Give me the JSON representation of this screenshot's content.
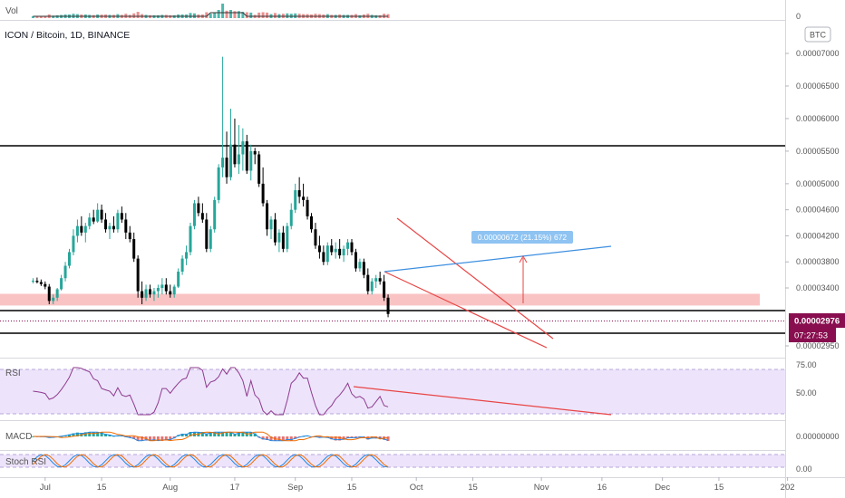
{
  "header": {
    "vol_label": "Vol",
    "symbol_title": "ICON / Bitcoin, 1D, BINANCE",
    "currency_button": "BTC",
    "vol_axis_zero": "0"
  },
  "panes": {
    "rsi_label": "RSI",
    "macd_label": "MACD",
    "stoch_label": "Stoch RSI",
    "rsi_ticks": [
      "75.00",
      "50.00"
    ],
    "macd_tick": "0.00000000",
    "stoch_tick": "0.00"
  },
  "price_axis": {
    "ticks": [
      {
        "label": "0.00007000",
        "value": 7000
      },
      {
        "label": "0.00006500",
        "value": 6500
      },
      {
        "label": "0.00006000",
        "value": 6000
      },
      {
        "label": "0.00005500",
        "value": 5500
      },
      {
        "label": "0.00005000",
        "value": 5000
      },
      {
        "label": "0.00004600",
        "value": 4600
      },
      {
        "label": "0.00004200",
        "value": 4200
      },
      {
        "label": "0.00003800",
        "value": 3800
      },
      {
        "label": "0.00003400",
        "value": 3400
      },
      {
        "label": "0.00002950",
        "value": 2950
      }
    ],
    "last_price": "0.00002976",
    "countdown": "07:27:53"
  },
  "annotations": {
    "measure_label": "0.00000672 (21.15%) 672"
  },
  "time_axis": [
    {
      "label": "Jul",
      "day": 0
    },
    {
      "label": "15",
      "day": 14
    },
    {
      "label": "Aug",
      "day": 31
    },
    {
      "label": "17",
      "day": 47
    },
    {
      "label": "Sep",
      "day": 62
    },
    {
      "label": "15",
      "day": 76
    },
    {
      "label": "Oct",
      "day": 92
    },
    {
      "label": "15",
      "day": 106
    },
    {
      "label": "Nov",
      "day": 123
    },
    {
      "label": "16",
      "day": 138
    },
    {
      "label": "Dec",
      "day": 153
    },
    {
      "label": "15",
      "day": 167
    },
    {
      "label": "202",
      "day": 184
    }
  ],
  "colors": {
    "up": "#26a69a",
    "down": "#000000",
    "rsi_line": "#8e3a8e",
    "rsi_band": "#ede4fb",
    "support_zone": "#f8b8b8",
    "channel": "#e84545",
    "trendline_blue": "#3d8fe0",
    "measure_label_bg": "#8ec3f2",
    "last_price_bg": "#880e4f",
    "macd_signal": "#ef6c00",
    "macd_line": "#1e88e5"
  },
  "chart_data": {
    "type": "candlestick",
    "symbol": "ICON / Bitcoin",
    "interval": "1D",
    "exchange": "BINANCE",
    "price_scale": "×1e-8 BTC",
    "x_unit": "days since Jul 1",
    "horizontal_levels": [
      5440,
      3060,
      2640
    ],
    "support_zone": [
      3130,
      3310
    ],
    "candles": [
      [
        -3,
        3500,
        3550,
        3470,
        3510
      ],
      [
        -2,
        3510,
        3560,
        3470,
        3490
      ],
      [
        -1,
        3490,
        3530,
        3430,
        3460
      ],
      [
        0,
        3460,
        3500,
        3380,
        3420
      ],
      [
        1,
        3420,
        3460,
        3150,
        3200
      ],
      [
        2,
        3200,
        3300,
        3150,
        3250
      ],
      [
        3,
        3250,
        3400,
        3200,
        3380
      ],
      [
        4,
        3380,
        3600,
        3360,
        3550
      ],
      [
        5,
        3550,
        3800,
        3500,
        3740
      ],
      [
        6,
        3740,
        4000,
        3700,
        3950
      ],
      [
        7,
        3950,
        4300,
        3900,
        4200
      ],
      [
        8,
        4200,
        4450,
        4100,
        4350
      ],
      [
        9,
        4350,
        4500,
        4200,
        4250
      ],
      [
        10,
        4250,
        4400,
        4100,
        4350
      ],
      [
        11,
        4350,
        4550,
        4300,
        4480
      ],
      [
        12,
        4480,
        4600,
        4380,
        4420
      ],
      [
        13,
        4420,
        4700,
        4400,
        4600
      ],
      [
        14,
        4600,
        4680,
        4400,
        4450
      ],
      [
        15,
        4450,
        4550,
        4250,
        4300
      ],
      [
        16,
        4300,
        4400,
        4150,
        4350
      ],
      [
        17,
        4350,
        4500,
        4250,
        4300
      ],
      [
        18,
        4300,
        4600,
        4250,
        4550
      ],
      [
        19,
        4550,
        4650,
        4400,
        4450
      ],
      [
        20,
        4450,
        4550,
        4150,
        4250
      ],
      [
        21,
        4250,
        4350,
        4100,
        4150
      ],
      [
        22,
        4150,
        4250,
        3800,
        3850
      ],
      [
        23,
        3850,
        3900,
        3250,
        3350
      ],
      [
        24,
        3350,
        3500,
        3150,
        3250
      ],
      [
        25,
        3250,
        3450,
        3200,
        3380
      ],
      [
        26,
        3380,
        3450,
        3250,
        3300
      ],
      [
        27,
        3300,
        3400,
        3200,
        3350
      ],
      [
        28,
        3350,
        3450,
        3250,
        3400
      ],
      [
        29,
        3400,
        3550,
        3300,
        3450
      ],
      [
        30,
        3450,
        3550,
        3300,
        3350
      ],
      [
        31,
        3350,
        3450,
        3250,
        3300
      ],
      [
        32,
        3300,
        3450,
        3250,
        3420
      ],
      [
        33,
        3420,
        3700,
        3400,
        3650
      ],
      [
        34,
        3650,
        3900,
        3600,
        3850
      ],
      [
        35,
        3850,
        4050,
        3750,
        3950
      ],
      [
        36,
        3950,
        4400,
        3900,
        4350
      ],
      [
        37,
        4350,
        4750,
        4300,
        4700
      ],
      [
        38,
        4700,
        4800,
        4500,
        4550
      ],
      [
        39,
        4550,
        4700,
        4400,
        4450
      ],
      [
        40,
        4450,
        4550,
        3950,
        4000
      ],
      [
        41,
        4000,
        4350,
        3950,
        4300
      ],
      [
        42,
        4300,
        4800,
        4250,
        4750
      ],
      [
        43,
        4750,
        5300,
        4700,
        5250
      ],
      [
        44,
        5250,
        6950,
        5100,
        5400
      ],
      [
        45,
        5400,
        5800,
        5000,
        5100
      ],
      [
        46,
        5100,
        6150,
        5050,
        5600
      ],
      [
        47,
        5600,
        6000,
        5250,
        5300
      ],
      [
        48,
        5300,
        5900,
        5150,
        5450
      ],
      [
        49,
        5450,
        5850,
        5200,
        5650
      ],
      [
        50,
        5650,
        5750,
        5150,
        5200
      ],
      [
        51,
        5200,
        5600,
        5050,
        5500
      ],
      [
        52,
        5500,
        5550,
        5300,
        5450
      ],
      [
        53,
        5450,
        5500,
        4950,
        5000
      ],
      [
        54,
        5000,
        5250,
        4650,
        4700
      ],
      [
        55,
        4700,
        4750,
        4200,
        4300
      ],
      [
        56,
        4300,
        4500,
        4150,
        4450
      ],
      [
        57,
        4450,
        4550,
        4050,
        4100
      ],
      [
        58,
        4100,
        4300,
        3950,
        4250
      ],
      [
        59,
        4250,
        4350,
        3950,
        4000
      ],
      [
        60,
        4000,
        4400,
        3950,
        4350
      ],
      [
        61,
        4350,
        4700,
        4300,
        4600
      ],
      [
        62,
        4600,
        5000,
        4550,
        4900
      ],
      [
        63,
        4900,
        5100,
        4700,
        4800
      ],
      [
        64,
        4800,
        5000,
        4650,
        4750
      ],
      [
        65,
        4750,
        4800,
        4450,
        4500
      ],
      [
        66,
        4500,
        4550,
        4250,
        4300
      ],
      [
        67,
        4300,
        4400,
        4000,
        4050
      ],
      [
        68,
        4050,
        4200,
        3850,
        3950
      ],
      [
        69,
        3950,
        4050,
        3750,
        3800
      ],
      [
        70,
        3800,
        4100,
        3750,
        4050
      ],
      [
        71,
        4050,
        4150,
        3900,
        3950
      ],
      [
        72,
        3950,
        4100,
        3850,
        4000
      ],
      [
        73,
        4000,
        4150,
        3850,
        3900
      ],
      [
        74,
        3900,
        4050,
        3800,
        4000
      ],
      [
        75,
        4000,
        4150,
        3900,
        4100
      ],
      [
        76,
        4100,
        4150,
        3900,
        3950
      ],
      [
        77,
        3950,
        4000,
        3650,
        3700
      ],
      [
        78,
        3700,
        3850,
        3650,
        3800
      ],
      [
        79,
        3800,
        3850,
        3550,
        3600
      ],
      [
        80,
        3600,
        3700,
        3300,
        3350
      ],
      [
        81,
        3350,
        3550,
        3300,
        3500
      ],
      [
        82,
        3500,
        3600,
        3400,
        3550
      ],
      [
        83,
        3550,
        3650,
        3450,
        3500
      ],
      [
        84,
        3500,
        3600,
        3200,
        3250
      ],
      [
        85,
        3250,
        3300,
        2950,
        3000
      ]
    ],
    "x_scale": {
      "d0": 49.8,
      "px_per_day": 4.45
    }
  }
}
